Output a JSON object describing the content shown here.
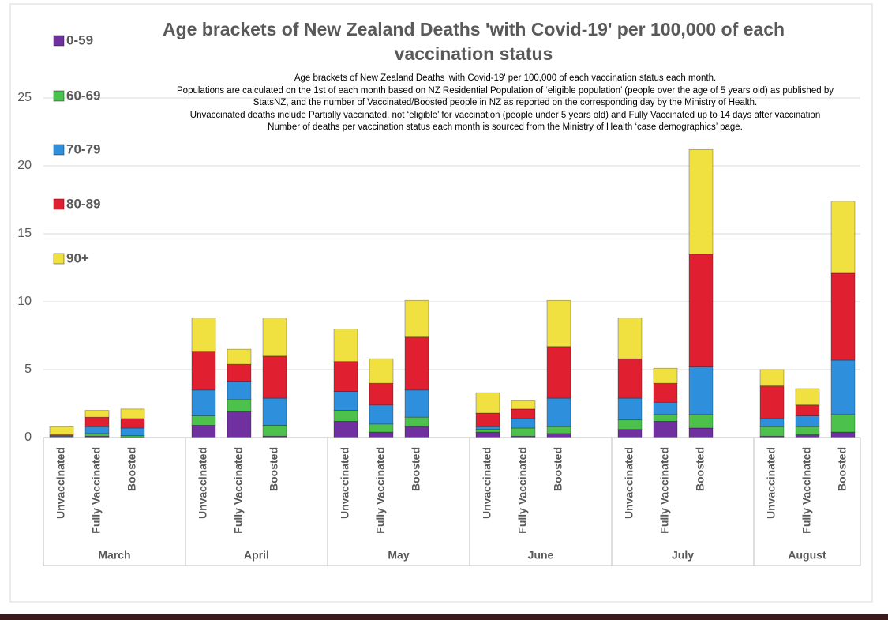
{
  "chart_data": {
    "type": "stacked_bar",
    "title": "Age brackets of New Zealand Deaths 'with Covid-19' per 100,000 of each vaccination status",
    "subtitle": [
      "Age brackets of New Zealand Deaths 'with Covid-19' per 100,000 of each vaccination status each month.",
      "Populations are calculated on the 1st of each month based on NZ Residential Population of ‘eligible population’ (people over the age of 5 years old) as published by",
      "StatsNZ, and the number of Vaccinated/Boosted people in NZ as reported on the corresponding day by the Ministry of Health.",
      "Unvaccinated deaths include Partially vaccinated, not ‘eligible’ for vaccination (people under 5 years old) and Fully Vaccinated up to 14 days after vaccination",
      "Number of deaths per vaccination status each month is sourced from the Ministry of Health ‘case demographics’ page."
    ],
    "categories": [
      "Unvaccinated",
      "Fully Vaccinated",
      "Boosted",
      "Unvaccinated",
      "Fully Vaccinated",
      "Boosted",
      "Unvaccinated",
      "Fully Vaccinated",
      "Boosted",
      "Unvaccinated",
      "Fully Vaccinated",
      "Boosted",
      "Unvaccinated",
      "Fully Vaccinated",
      "Boosted",
      "Unvaccinated",
      "Fully Vaccinated",
      "Boosted"
    ],
    "groups": [
      "March",
      "April",
      "May",
      "June",
      "July",
      "August"
    ],
    "series": [
      {
        "name": "0-59",
        "color": "#7030a0",
        "values": [
          0,
          0.1,
          0.05,
          0.9,
          1.9,
          0.1,
          1.2,
          0.4,
          0.8,
          0.4,
          0.1,
          0.3,
          0.6,
          1.2,
          0.7,
          0.1,
          0.2,
          0.4
        ]
      },
      {
        "name": "60-69",
        "color": "#4cc24c",
        "values": [
          0,
          0.2,
          0.1,
          0.7,
          0.9,
          0.8,
          0.8,
          0.6,
          0.7,
          0.2,
          0.6,
          0.5,
          0.7,
          0.5,
          1.0,
          0.7,
          0.6,
          1.3
        ]
      },
      {
        "name": "70-79",
        "color": "#2e8fdc",
        "values": [
          0.1,
          0.5,
          0.55,
          1.9,
          1.3,
          2.0,
          1.4,
          1.4,
          2.0,
          0.2,
          0.7,
          2.1,
          1.6,
          0.9,
          3.5,
          0.6,
          0.8,
          4.0
        ]
      },
      {
        "name": "80-89",
        "color": "#e02030",
        "values": [
          0.1,
          0.7,
          0.7,
          2.8,
          1.3,
          3.1,
          2.2,
          1.6,
          3.9,
          1.0,
          0.7,
          3.8,
          2.9,
          1.4,
          8.3,
          2.4,
          0.8,
          6.4
        ]
      },
      {
        "name": "90+",
        "color": "#f0e040",
        "values": [
          0.6,
          0.5,
          0.7,
          2.5,
          1.1,
          2.8,
          2.4,
          1.8,
          2.7,
          1.5,
          0.6,
          3.4,
          3.0,
          1.1,
          7.7,
          1.2,
          1.2,
          5.3
        ]
      }
    ],
    "ylim": [
      0,
      25
    ],
    "yticks": [
      0,
      5,
      10,
      15,
      20,
      25
    ],
    "grid": true,
    "legend": "left"
  }
}
